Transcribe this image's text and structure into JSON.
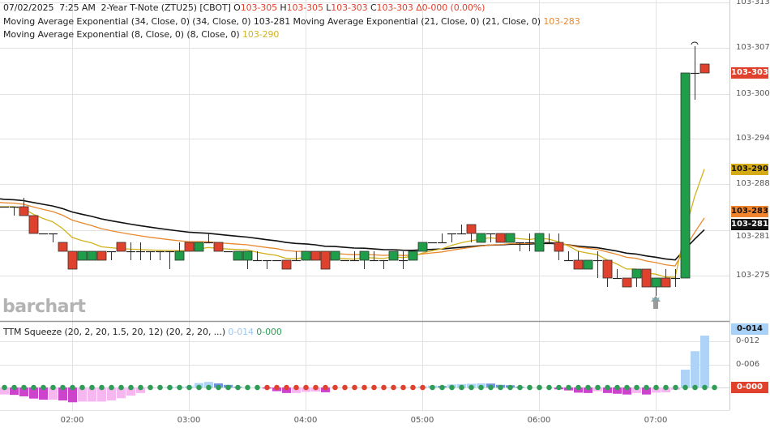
{
  "header": {
    "date": "07/02/2025",
    "time": "7:25 AM",
    "instrument": "2-Year T-Note (ZTU25) [CBOT]",
    "o_label": "O",
    "open": "103-305",
    "h_label": "H",
    "high": "103-305",
    "l_label": "L",
    "low": "103-303",
    "c_label": "C",
    "close": "103-303",
    "change": "Δ0-000 (0.00%)"
  },
  "studies": {
    "ema34": {
      "label": "Moving Average Exponential (34, Close, 0)  (34, Close, 0)",
      "value": "103-281",
      "color": "#111111"
    },
    "ema21": {
      "label": "Moving Average Exponential (21, Close, 0)  (21, Close, 0)",
      "value": "103-283",
      "color": "#e8892f"
    },
    "ema8": {
      "label": "Moving Average Exponential (8, Close, 0)  (8, Close, 0)",
      "value": "103-290",
      "color": "#d2b21e"
    },
    "ttm": {
      "label": "TTM Squeeze (20, 2, 20, 1.5, 20, 12)  (20, 2, 20, ...)",
      "value1": "0-014",
      "value2": "0-000"
    }
  },
  "watermark": "barchart",
  "price_axis": [
    "103-313",
    "103-307",
    "103-300",
    "103-294",
    "103-288",
    "103-281",
    "103-275"
  ],
  "price_tags": {
    "last": "103-303",
    "ema8": "103-290",
    "ema21": "103-283",
    "ema34": "103-281"
  },
  "ttm_axis": [
    "0-012",
    "0-006"
  ],
  "ttm_tags": {
    "hist": "0-014",
    "zero": "0-000"
  },
  "time_axis": [
    "02:00",
    "03:00",
    "04:00",
    "05:00",
    "06:00",
    "07:00"
  ],
  "colors": {
    "up": "#1f9e4a",
    "down": "#e0412c",
    "hist_up_rising": "#aed3f7",
    "hist_up_falling": "#6f93dc",
    "hist_dn_falling": "#cc44cc",
    "hist_dn_rising": "#f6b6f0",
    "squeeze_off": "#2e9d55",
    "squeeze_on": "#e0412c"
  },
  "chart_data": {
    "type": "candlestick",
    "interval": "5 min",
    "columns": [
      "time",
      "open",
      "high",
      "low",
      "close"
    ],
    "candles": [
      [
        "01:25",
        "103-285",
        "103-285",
        "103-285",
        "103-285"
      ],
      [
        "01:30",
        "103-285",
        "103-285",
        "103-283",
        "103-285"
      ],
      [
        "01:35",
        "103-285",
        "103-286",
        "103-283",
        "103-283"
      ],
      [
        "01:40",
        "103-283",
        "103-283",
        "103-281",
        "103-281"
      ],
      [
        "01:45",
        "103-281",
        "103-281",
        "103-281",
        "103-281"
      ],
      [
        "01:50",
        "103-281",
        "103-281",
        "103-280",
        "103-281"
      ],
      [
        "01:55",
        "103-280",
        "103-280",
        "103-278",
        "103-278"
      ],
      [
        "02:00",
        "103-278",
        "103-278",
        "103-276",
        "103-276"
      ],
      [
        "02:05",
        "103-277",
        "103-278",
        "103-277",
        "103-278"
      ],
      [
        "02:10",
        "103-277",
        "103-278",
        "103-277",
        "103-278"
      ],
      [
        "02:15",
        "103-278",
        "103-278",
        "103-277",
        "103-277"
      ],
      [
        "02:20",
        "103-278",
        "103-278",
        "103-277",
        "103-278"
      ],
      [
        "02:25",
        "103-280",
        "103-280",
        "103-278",
        "103-278"
      ],
      [
        "02:30",
        "103-278",
        "103-280",
        "103-277",
        "103-278"
      ],
      [
        "02:35",
        "103-278",
        "103-280",
        "103-277",
        "103-278"
      ],
      [
        "02:40",
        "103-278",
        "103-278",
        "103-277",
        "103-278"
      ],
      [
        "02:45",
        "103-278",
        "103-278",
        "103-277",
        "103-278"
      ],
      [
        "02:50",
        "103-278",
        "103-278",
        "103-276",
        "103-278"
      ],
      [
        "02:55",
        "103-277",
        "103-280",
        "103-277",
        "103-278"
      ],
      [
        "03:00",
        "103-280",
        "103-280",
        "103-278",
        "103-278"
      ],
      [
        "03:05",
        "103-278",
        "103-280",
        "103-278",
        "103-280"
      ],
      [
        "03:10",
        "103-280",
        "103-281",
        "103-280",
        "103-280"
      ],
      [
        "03:15",
        "103-280",
        "103-280",
        "103-278",
        "103-278"
      ],
      [
        "03:20",
        "103-278",
        "103-278",
        "103-278",
        "103-278"
      ],
      [
        "03:25",
        "103-277",
        "103-278",
        "103-277",
        "103-278"
      ],
      [
        "03:30",
        "103-277",
        "103-278",
        "103-276",
        "103-278"
      ],
      [
        "03:35",
        "103-277",
        "103-278",
        "103-277",
        "103-277"
      ],
      [
        "03:40",
        "103-277",
        "103-277",
        "103-276",
        "103-277"
      ],
      [
        "03:45",
        "103-277",
        "103-277",
        "103-277",
        "103-277"
      ],
      [
        "03:50",
        "103-277",
        "103-277",
        "103-276",
        "103-276"
      ],
      [
        "03:55",
        "103-277",
        "103-278",
        "103-277",
        "103-277"
      ],
      [
        "04:00",
        "103-277",
        "103-278",
        "103-277",
        "103-278"
      ],
      [
        "04:05",
        "103-278",
        "103-278",
        "103-277",
        "103-277"
      ],
      [
        "04:10",
        "103-278",
        "103-278",
        "103-276",
        "103-276"
      ],
      [
        "04:15",
        "103-277",
        "103-278",
        "103-277",
        "103-278"
      ],
      [
        "04:20",
        "103-277",
        "103-277",
        "103-277",
        "103-277"
      ],
      [
        "04:25",
        "103-277",
        "103-278",
        "103-277",
        "103-277"
      ],
      [
        "04:30",
        "103-277",
        "103-278",
        "103-276",
        "103-278"
      ],
      [
        "04:35",
        "103-277",
        "103-278",
        "103-277",
        "103-277"
      ],
      [
        "04:40",
        "103-277",
        "103-277",
        "103-276",
        "103-277"
      ],
      [
        "04:45",
        "103-277",
        "103-278",
        "103-277",
        "103-278"
      ],
      [
        "04:50",
        "103-277",
        "103-278",
        "103-276",
        "103-277"
      ],
      [
        "04:55",
        "103-277",
        "103-278",
        "103-277",
        "103-278"
      ],
      [
        "05:00",
        "103-278",
        "103-280",
        "103-278",
        "103-280"
      ],
      [
        "05:05",
        "103-280",
        "103-280",
        "103-280",
        "103-280"
      ],
      [
        "05:10",
        "103-280",
        "103-281",
        "103-280",
        "103-280"
      ],
      [
        "05:15",
        "103-281",
        "103-281",
        "103-280",
        "103-281"
      ],
      [
        "05:20",
        "103-281",
        "103-282",
        "103-281",
        "103-281"
      ],
      [
        "05:25",
        "103-282",
        "103-282",
        "103-280",
        "103-281"
      ],
      [
        "05:30",
        "103-280",
        "103-281",
        "103-280",
        "103-281"
      ],
      [
        "05:35",
        "103-281",
        "103-281",
        "103-280",
        "103-281"
      ],
      [
        "05:40",
        "103-281",
        "103-281",
        "103-280",
        "103-280"
      ],
      [
        "05:45",
        "103-280",
        "103-281",
        "103-280",
        "103-281"
      ],
      [
        "05:50",
        "103-280",
        "103-280",
        "103-278",
        "103-280"
      ],
      [
        "05:55",
        "103-280",
        "103-281",
        "103-278",
        "103-280"
      ],
      [
        "06:00",
        "103-278",
        "103-281",
        "103-278",
        "103-281"
      ],
      [
        "06:05",
        "103-280",
        "103-281",
        "103-280",
        "103-280"
      ],
      [
        "06:10",
        "103-280",
        "103-281",
        "103-277",
        "103-278"
      ],
      [
        "06:15",
        "103-277",
        "103-278",
        "103-277",
        "103-277"
      ],
      [
        "06:20",
        "103-277",
        "103-278",
        "103-276",
        "103-276"
      ],
      [
        "06:25",
        "103-276",
        "103-277",
        "103-276",
        "103-277"
      ],
      [
        "06:30",
        "103-277",
        "103-278",
        "103-275",
        "103-277"
      ],
      [
        "06:35",
        "103-277",
        "103-277",
        "103-273",
        "103-275"
      ],
      [
        "06:40",
        "103-275",
        "103-276",
        "103-275",
        "103-275"
      ],
      [
        "06:45",
        "103-275",
        "103-275",
        "103-273",
        "103-273"
      ],
      [
        "06:50",
        "103-275",
        "103-276",
        "103-273",
        "103-276"
      ],
      [
        "06:55",
        "103-276",
        "103-276",
        "103-273",
        "103-273"
      ],
      [
        "07:00",
        "103-273",
        "103-275",
        "103-272",
        "103-275"
      ],
      [
        "07:05",
        "103-275",
        "103-276",
        "103-273",
        "103-273"
      ],
      [
        "07:10",
        "103-275",
        "103-276",
        "103-273",
        "103-275"
      ],
      [
        "07:15",
        "103-275",
        "103-303",
        "103-275",
        "103-303"
      ],
      [
        "07:20",
        "103-303",
        "103-307",
        "103-300",
        "103-303"
      ],
      [
        "07:25",
        "103-305",
        "103-305",
        "103-303",
        "103-303"
      ]
    ],
    "ttm_histogram_32nds": [
      -0.19,
      -0.2,
      -0.24,
      -0.3,
      -0.33,
      -0.33,
      -0.35,
      -0.4,
      -0.38,
      -0.38,
      -0.38,
      -0.35,
      -0.29,
      -0.22,
      -0.15,
      -0.02,
      0,
      0.01,
      0.02,
      0.03,
      0.12,
      0.15,
      0.11,
      0.07,
      0.02,
      0,
      0,
      -0.03,
      -0.1,
      -0.15,
      -0.15,
      -0.12,
      -0.11,
      -0.13,
      0,
      0,
      0,
      0,
      0,
      0,
      0,
      0,
      0,
      0.03,
      0.05,
      0.04,
      0.08,
      0.09,
      0.1,
      0.11,
      0.105,
      0.07,
      0.06,
      0.02,
      0,
      0,
      0,
      -0.05,
      -0.08,
      -0.14,
      -0.15,
      -0.1,
      -0.15,
      -0.17,
      -0.19,
      -0.15,
      -0.19,
      -0.14,
      -0.13,
      -0.06,
      0.48,
      0.98,
      1.4
    ],
    "ttm_squeeze_dots": "gggggggggggggggggggggggggggrrrrrrrrrrrrrrrrrgggggggggggggggggggggggggggggg",
    "markers": [
      {
        "time": "07:00",
        "type": "up-arrow"
      }
    ]
  }
}
